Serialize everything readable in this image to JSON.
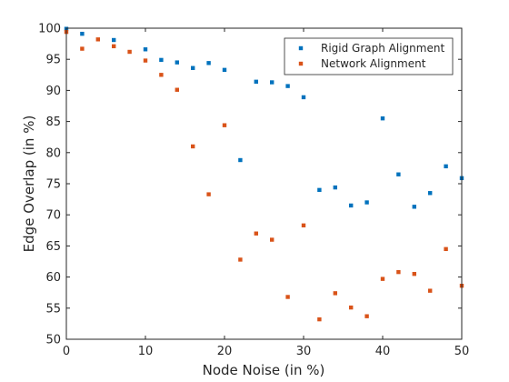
{
  "chart_data": {
    "type": "scatter",
    "title": "",
    "xlabel": "Node Noise (in %)",
    "ylabel": "Edge Overlap (in %)",
    "xlim": [
      0,
      50
    ],
    "ylim": [
      50,
      100
    ],
    "xticks": [
      0,
      10,
      20,
      30,
      40,
      50
    ],
    "yticks": [
      50,
      55,
      60,
      65,
      70,
      75,
      80,
      85,
      90,
      95,
      100
    ],
    "grid": false,
    "legend_position": "top-right",
    "series": [
      {
        "name": "Rigid Graph Alignment",
        "color": "#0072bd",
        "x": [
          0,
          2,
          6,
          10,
          12,
          14,
          16,
          18,
          20,
          22,
          24,
          26,
          28,
          30,
          32,
          34,
          36,
          38,
          40,
          42,
          44,
          46,
          48,
          50
        ],
        "y": [
          99.9,
          99.1,
          98.1,
          96.6,
          94.9,
          94.5,
          93.6,
          94.4,
          93.3,
          78.8,
          91.4,
          91.3,
          90.7,
          88.9,
          74.0,
          74.4,
          71.5,
          72.0,
          85.5,
          76.5,
          71.3,
          73.5,
          77.8,
          75.9
        ]
      },
      {
        "name": "Network Alignment",
        "color": "#d95319",
        "x": [
          0,
          2,
          4,
          6,
          8,
          10,
          12,
          14,
          16,
          18,
          20,
          22,
          24,
          26,
          28,
          30,
          32,
          34,
          36,
          38,
          40,
          42,
          44,
          46,
          48,
          50
        ],
        "y": [
          99.4,
          96.7,
          98.2,
          97.1,
          96.2,
          94.8,
          92.5,
          90.1,
          81.0,
          73.3,
          84.4,
          62.8,
          67.0,
          66.0,
          56.8,
          68.3,
          53.2,
          57.4,
          55.1,
          53.7,
          59.7,
          60.8,
          60.5,
          57.8,
          64.5,
          58.6
        ]
      }
    ]
  }
}
